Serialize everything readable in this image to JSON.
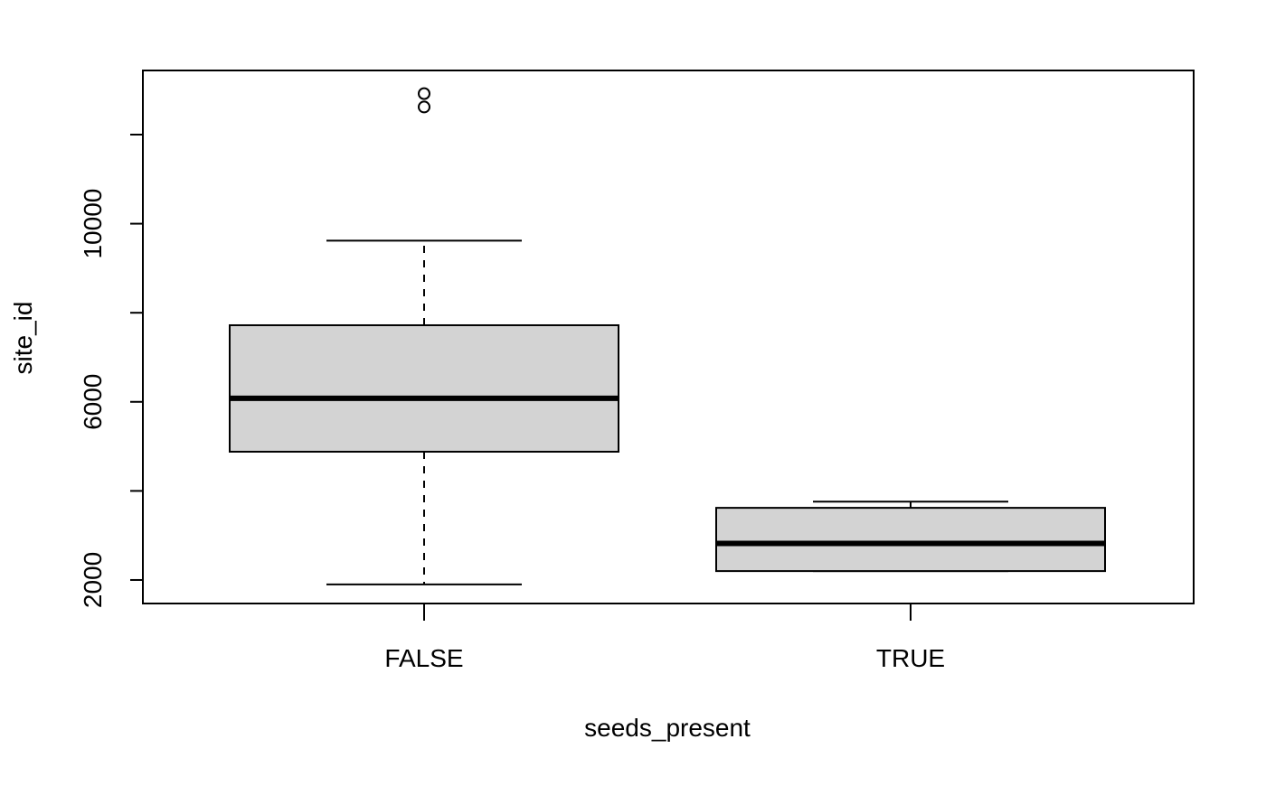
{
  "chart_data": {
    "type": "box",
    "title": "",
    "xlabel": "seeds_present",
    "ylabel": "site_id",
    "categories": [
      "FALSE",
      "TRUE"
    ],
    "boxes": [
      {
        "category": "FALSE",
        "whisker_low": 1900,
        "q1": 4880,
        "median": 6080,
        "q3": 7720,
        "whisker_high": 9620,
        "outliers": [
          12620,
          12920
        ]
      },
      {
        "category": "TRUE",
        "whisker_low": 2200,
        "q1": 2200,
        "median": 2820,
        "q3": 3620,
        "whisker_high": 3760,
        "outliers": []
      }
    ],
    "y_ticks": [
      2000,
      4000,
      6000,
      8000,
      10000,
      12000
    ],
    "y_tick_labels": [
      {
        "value": 2000,
        "label": "2000"
      },
      {
        "value": 6000,
        "label": "6000"
      },
      {
        "value": 10000,
        "label": "10000"
      }
    ],
    "ylim": [
      1472,
      13440
    ],
    "grid": false,
    "colors": {
      "box_fill": "#d3d3d3",
      "stroke": "#000000",
      "background": "#ffffff"
    }
  }
}
